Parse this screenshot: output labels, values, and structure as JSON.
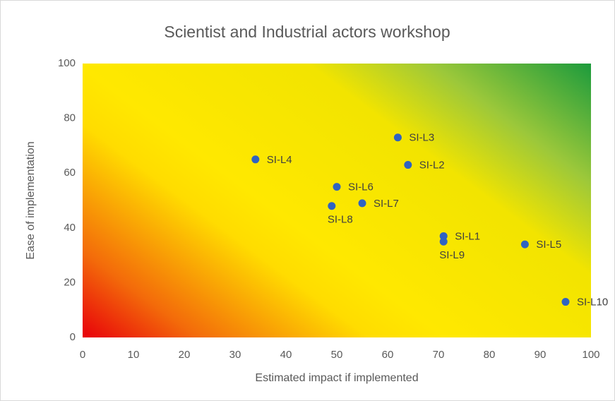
{
  "chart_data": {
    "type": "scatter",
    "title": "Scientist and Industrial actors workshop",
    "x_label": "Estimated impact if implemented",
    "y_label": "Ease of implementation",
    "labels": [
      "SI-L1",
      "SI-L2",
      "SI-L3",
      "SI-L4",
      "SI-L5",
      "SI-L6",
      "SI-L7",
      "SI-L8",
      "SI-L9",
      "SI-L10"
    ],
    "x": [
      71,
      64,
      62,
      34,
      87,
      50,
      55,
      49,
      71,
      95
    ],
    "values": [
      37,
      63,
      73,
      65,
      34,
      55,
      49,
      48,
      35,
      13
    ],
    "color": "#2f63c2",
    "xlim": [
      0,
      100
    ],
    "xticks": [
      0,
      10,
      20,
      30,
      40,
      50,
      60,
      70,
      80,
      90,
      100
    ],
    "ylim": [
      0,
      100
    ],
    "yticks": [
      0,
      20,
      40,
      60,
      80,
      100
    ]
  }
}
